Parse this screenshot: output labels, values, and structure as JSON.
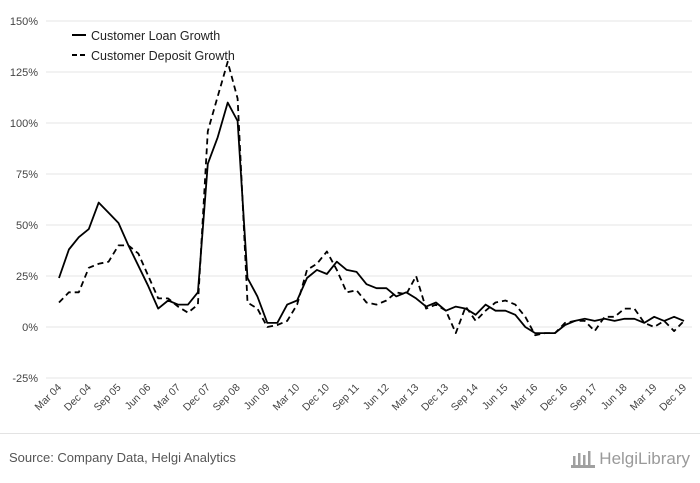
{
  "source_text": "Source: Company Data, Helgi Analytics",
  "logo_text": "HelgiLibrary",
  "colors": {
    "line": "#000000",
    "grid": "#e6e6e6",
    "text": "#444444",
    "logo": "#9a9a9a"
  },
  "chart_data": {
    "type": "line",
    "xlabel": "",
    "ylabel": "",
    "x_tick_labels": [
      "Mar 04",
      "Dec 04",
      "Sep 05",
      "Jun 06",
      "Mar 07",
      "Dec 07",
      "Sep 08",
      "Jun 09",
      "Mar 10",
      "Dec 10",
      "Sep 11",
      "Jun 12",
      "Mar 13",
      "Dec 13",
      "Sep 14",
      "Jun 15",
      "Mar 16",
      "Dec 16",
      "Sep 17",
      "Jun 18",
      "Mar 19",
      "Dec 19"
    ],
    "y_tick_labels": [
      "150%",
      "125%",
      "100%",
      "75%",
      "50%",
      "25%",
      "0%",
      "-25%"
    ],
    "y_tick_values": [
      150,
      125,
      100,
      75,
      50,
      25,
      0,
      -25
    ],
    "ylim": [
      -25,
      150
    ],
    "grid": true,
    "legend_position": "top-left",
    "x_period_start": "Mar 04",
    "x_period_step": "quarterly",
    "series": [
      {
        "name": "Customer Loan Growth",
        "style": "solid",
        "values": [
          24,
          38,
          44,
          48,
          61,
          56,
          51,
          40,
          30,
          20,
          9,
          13,
          11,
          11,
          17,
          80,
          93,
          110,
          101,
          24,
          15,
          2,
          2,
          11,
          13,
          24,
          28,
          26,
          32,
          28,
          27,
          21,
          19,
          19,
          15,
          17,
          14,
          10,
          12,
          8,
          10,
          9,
          6,
          11,
          8,
          8,
          6,
          0,
          -3,
          -3,
          -3,
          1,
          3,
          4,
          3,
          4,
          3,
          4,
          4,
          2,
          5,
          3,
          5,
          3
        ]
      },
      {
        "name": "Customer Deposit Growth",
        "style": "dashed",
        "values": [
          12,
          17,
          17,
          29,
          31,
          32,
          40,
          40,
          36,
          25,
          14,
          14,
          10,
          7,
          11,
          96,
          113,
          130,
          112,
          12,
          9,
          0,
          1,
          3,
          11,
          28,
          31,
          37,
          28,
          17,
          18,
          12,
          11,
          13,
          17,
          16,
          25,
          9,
          11,
          8,
          -3,
          10,
          3,
          8,
          12,
          13,
          11,
          5,
          -4,
          -3,
          -3,
          2,
          3,
          3,
          -2,
          5,
          5,
          9,
          9,
          2,
          0,
          3,
          -2,
          3
        ]
      }
    ]
  }
}
